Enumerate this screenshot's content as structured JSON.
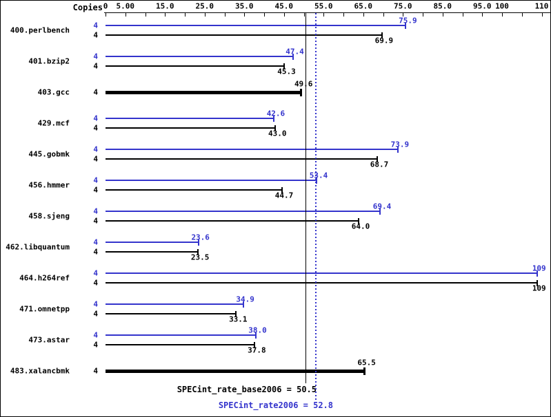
{
  "chart": {
    "copies_header": "Copies"
  },
  "chart_data": {
    "type": "bar",
    "orientation": "horizontal",
    "xlim": [
      0,
      112
    ],
    "grid": false,
    "legend": false,
    "copies_column_header": "Copies",
    "series_colors": {
      "peak": "#3333cc",
      "base": "#000000"
    },
    "x_ticks": [
      0,
      5,
      10,
      15,
      20,
      25,
      30,
      35,
      40,
      45,
      50,
      55,
      60,
      65,
      70,
      75,
      80,
      85,
      90,
      95,
      100,
      105,
      110
    ],
    "x_tick_labels": [
      {
        "value": 0,
        "label": "0"
      },
      {
        "value": 5,
        "label": "5.00"
      },
      {
        "value": 15,
        "label": "15.0"
      },
      {
        "value": 25,
        "label": "25.0"
      },
      {
        "value": 35,
        "label": "35.0"
      },
      {
        "value": 45,
        "label": "45.0"
      },
      {
        "value": 55,
        "label": "55.0"
      },
      {
        "value": 65,
        "label": "65.0"
      },
      {
        "value": 75,
        "label": "75.0"
      },
      {
        "value": 85,
        "label": "85.0"
      },
      {
        "value": 95,
        "label": "95.0"
      },
      {
        "value": 100,
        "label": "100"
      },
      {
        "value": 110,
        "label": "110"
      }
    ],
    "benchmarks": [
      {
        "name": "400.perlbench",
        "copies": 4,
        "peak": 75.9,
        "peak_label": "75.9",
        "base": 69.9,
        "base_label": "69.9"
      },
      {
        "name": "401.bzip2",
        "copies": 4,
        "peak": 47.4,
        "peak_label": "47.4",
        "base": 45.3,
        "base_label": "45.3"
      },
      {
        "name": "403.gcc",
        "copies": 4,
        "base": 49.6,
        "base_label": "49.6",
        "base_only": true
      },
      {
        "name": "429.mcf",
        "copies": 4,
        "peak": 42.6,
        "peak_label": "42.6",
        "base": 43.0,
        "base_label": "43.0"
      },
      {
        "name": "445.gobmk",
        "copies": 4,
        "peak": 73.9,
        "peak_label": "73.9",
        "base": 68.7,
        "base_label": "68.7"
      },
      {
        "name": "456.hmmer",
        "copies": 4,
        "peak": 53.4,
        "peak_label": "53.4",
        "base": 44.7,
        "base_label": "44.7"
      },
      {
        "name": "458.sjeng",
        "copies": 4,
        "peak": 69.4,
        "peak_label": "69.4",
        "base": 64.0,
        "base_label": "64.0"
      },
      {
        "name": "462.libquantum",
        "copies": 4,
        "peak": 23.6,
        "peak_label": "23.6",
        "base": 23.5,
        "base_label": "23.5"
      },
      {
        "name": "464.h264ref",
        "copies": 4,
        "peak": 109,
        "peak_label": "109",
        "base": 109,
        "base_label": "109"
      },
      {
        "name": "471.omnetpp",
        "copies": 4,
        "peak": 34.9,
        "peak_label": "34.9",
        "base": 33.1,
        "base_label": "33.1"
      },
      {
        "name": "473.astar",
        "copies": 4,
        "peak": 38.0,
        "peak_label": "38.0",
        "base": 37.8,
        "base_label": "37.8"
      },
      {
        "name": "483.xalancbmk",
        "copies": 4,
        "base": 65.5,
        "base_label": "65.5",
        "base_only": true
      }
    ],
    "reference_lines": [
      {
        "name": "base_mean",
        "label": "SPECint_rate_base2006 = 50.5",
        "value": 50.5,
        "style": "solid",
        "color": "#000000"
      },
      {
        "name": "peak_mean",
        "label": "SPECint_rate2006 = 52.8",
        "value": 52.8,
        "style": "dotted",
        "color": "#3333cc"
      }
    ]
  }
}
